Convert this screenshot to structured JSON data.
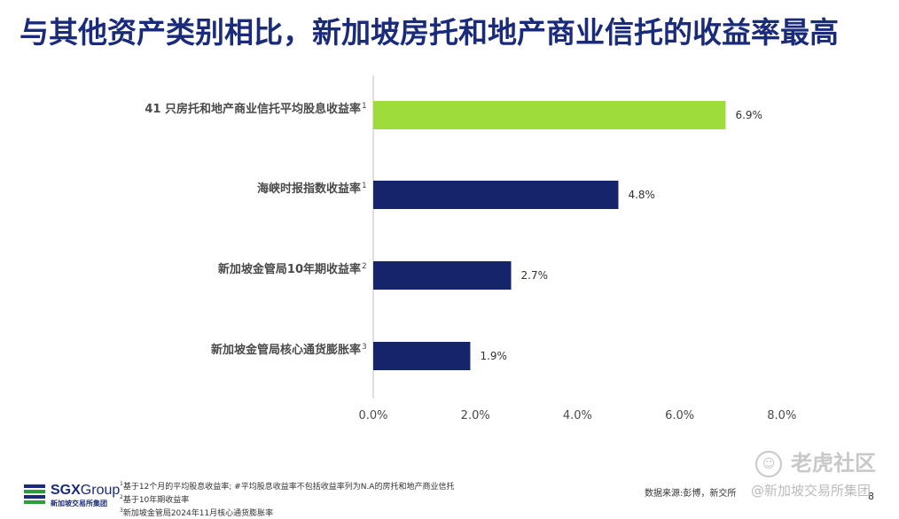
{
  "title": "与其他资产类别相比，新加坡房托和地产商业信托的收益率最高",
  "chart_data": {
    "type": "bar",
    "orientation": "horizontal",
    "categories": [
      "41 只房托和地产商业信托平均股息收益率",
      "海峡时报指数收益率",
      "新加坡金管局10年期收益率",
      "新加坡金管局核心通货膨胀率"
    ],
    "category_superscripts": [
      "1",
      "1",
      "2",
      "3"
    ],
    "values": [
      6.9,
      4.8,
      2.7,
      1.9
    ],
    "value_labels": [
      "6.9%",
      "4.8%",
      "2.7%",
      "1.9%"
    ],
    "bar_colors": [
      "#9ddc3a",
      "#16246b",
      "#16246b",
      "#16246b"
    ],
    "xlim": [
      0,
      8
    ],
    "xticks": [
      "0.0%",
      "2.0%",
      "4.0%",
      "6.0%",
      "8.0%"
    ],
    "xtick_values": [
      0,
      2,
      4,
      6,
      8
    ],
    "grid": false
  },
  "footnotes": [
    "基于12个月的平均股息收益率; #平均股息收益率不包括收益率列为N.A的房托和地产商业信托",
    "基于10年期收益率",
    "新加坡金管局2024年11月核心通货膨胀率"
  ],
  "footnote_marks": [
    "1",
    "2",
    "3"
  ],
  "logo": {
    "name_bold": "SGX",
    "name_rest": "Group",
    "subtitle": "新加坡交易所集团",
    "colors": [
      "#1a2b7c",
      "#2a9d3c",
      "#1a2b7c",
      "#2a9d3c"
    ]
  },
  "source": "数据来源:彭博，新交所",
  "page_number": "8",
  "watermark": {
    "main": "老虎社区",
    "sub": "@新加坡交易所集团"
  }
}
